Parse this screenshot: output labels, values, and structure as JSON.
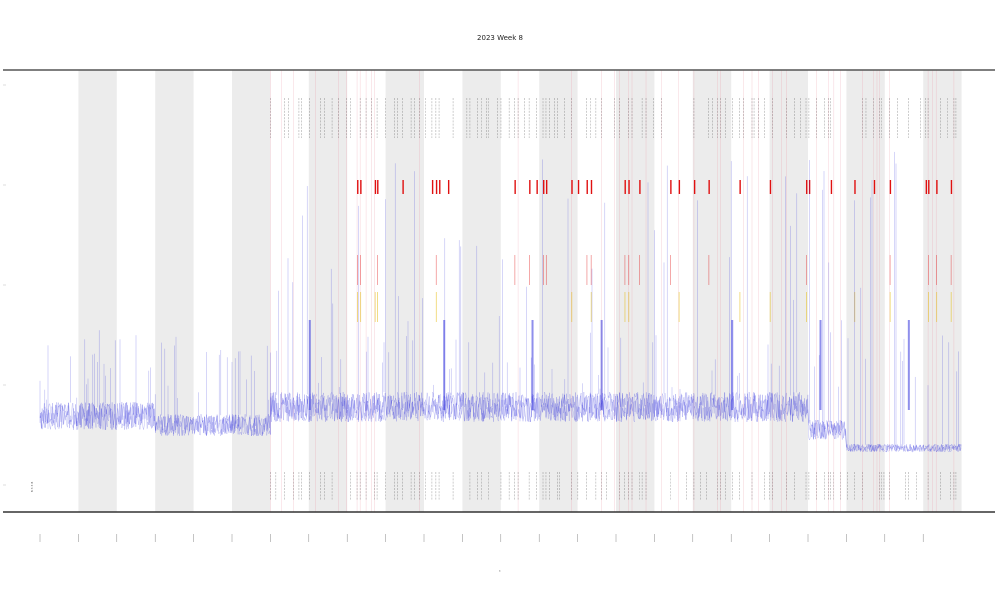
{
  "chart_data": {
    "type": "line",
    "title": "2023 Week 8",
    "xlabel": "t",
    "ylabel": "",
    "inner_label": "8 3 3 8",
    "x_tick_count": 24,
    "y_tick_count": 5,
    "grid": false,
    "legend": "none",
    "day_shading": [
      1,
      3,
      5,
      7,
      9,
      11,
      13,
      15,
      17,
      19,
      21,
      23
    ],
    "colors": {
      "series": "#3333dd",
      "alert_high": "#e01010",
      "alert_mid": "#e6c020",
      "marker": "#111111",
      "band": "#ececec",
      "event_line": "#e88a9a",
      "axis": "#333333"
    },
    "event_zone": {
      "start_day": 6.0,
      "end_day": 24.0
    }
  }
}
